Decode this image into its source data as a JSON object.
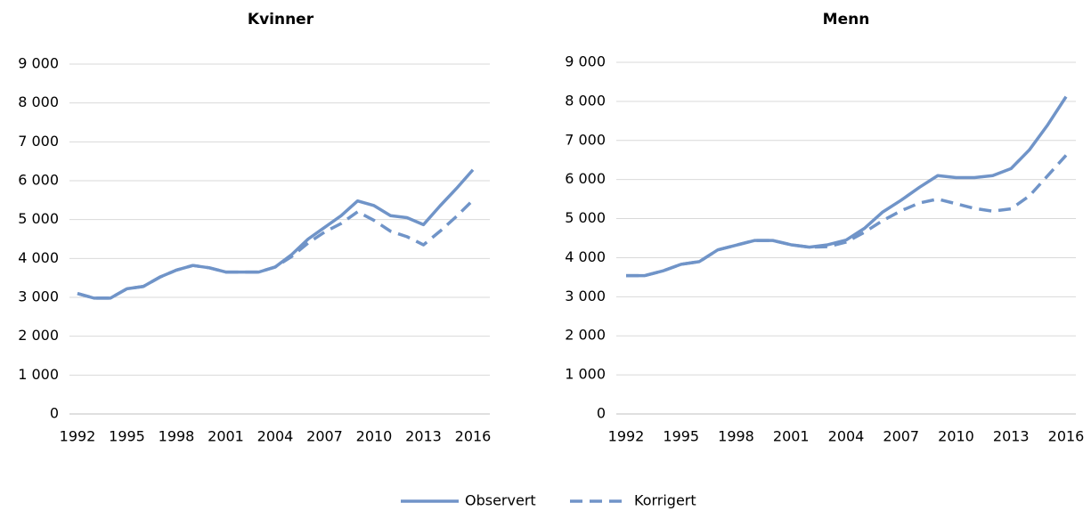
{
  "chart_data": [
    {
      "type": "line",
      "title": "Kvinner",
      "x": [
        1992,
        1993,
        1994,
        1995,
        1996,
        1997,
        1998,
        1999,
        2000,
        2001,
        2002,
        2003,
        2004,
        2005,
        2006,
        2007,
        2008,
        2009,
        2010,
        2011,
        2012,
        2013,
        2014,
        2015,
        2016
      ],
      "series": [
        {
          "name": "Observert",
          "color": "#7094c8",
          "dashed": false,
          "values": [
            3100,
            2980,
            2980,
            3220,
            3280,
            3520,
            3700,
            3820,
            3760,
            3650,
            3650,
            3650,
            3780,
            4100,
            4500,
            4800,
            5100,
            5480,
            5360,
            5100,
            5050,
            4870,
            5350,
            5800,
            6280
          ]
        },
        {
          "name": "Korrigert",
          "color": "#7094c8",
          "dashed": true,
          "values": [
            3100,
            2980,
            2980,
            3220,
            3280,
            3520,
            3700,
            3820,
            3760,
            3650,
            3650,
            3650,
            3780,
            4050,
            4400,
            4680,
            4900,
            5200,
            4980,
            4700,
            4560,
            4350,
            4700,
            5080,
            5500
          ]
        }
      ],
      "xlim": [
        1992,
        2016
      ],
      "xticks": [
        1992,
        1995,
        1998,
        2001,
        2004,
        2007,
        2010,
        2013,
        2016
      ],
      "ylim": [
        0,
        9000
      ],
      "yticks": [
        0,
        {
          "value": 1000,
          "label": "1 000"
        },
        {
          "value": 2000,
          "label": "2 000"
        },
        {
          "value": 3000,
          "label": "3 000"
        },
        {
          "value": 4000,
          "label": "4 000"
        },
        {
          "value": 5000,
          "label": "5 000"
        },
        {
          "value": 6000,
          "label": "6 000"
        },
        {
          "value": 7000,
          "label": "7 000"
        },
        {
          "value": 8000,
          "label": "8 000"
        },
        {
          "value": 9000,
          "label": "9 000"
        }
      ],
      "grid": true,
      "legend": "bottom"
    },
    {
      "type": "line",
      "title": "Menn",
      "x": [
        1992,
        1993,
        1994,
        1995,
        1996,
        1997,
        1998,
        1999,
        2000,
        2001,
        2002,
        2003,
        2004,
        2005,
        2006,
        2007,
        2008,
        2009,
        2010,
        2011,
        2012,
        2013,
        2014,
        2015,
        2016
      ],
      "series": [
        {
          "color": "#7094c8",
          "dashed": false,
          "values": [
            3540,
            3540,
            3660,
            3830,
            3900,
            4200,
            4320,
            4440,
            4440,
            4330,
            4270,
            4330,
            4450,
            4750,
            5170,
            5470,
            5800,
            6100,
            6050,
            6050,
            6100,
            6280,
            6760,
            7400,
            8120
          ]
        },
        {
          "color": "#7094c8",
          "dashed": true,
          "values": [
            3540,
            3540,
            3660,
            3830,
            3900,
            4200,
            4320,
            4440,
            4440,
            4330,
            4270,
            4280,
            4400,
            4650,
            4950,
            5200,
            5400,
            5500,
            5380,
            5260,
            5190,
            5250,
            5580,
            6100,
            6620
          ]
        }
      ],
      "xlim": [
        1992,
        2016
      ],
      "xticks": [
        1992,
        1995,
        1998,
        2001,
        2004,
        2007,
        2010,
        2013,
        2016
      ],
      "ylim": [
        0,
        9000
      ],
      "yticks": [
        0,
        {
          "value": 1000,
          "label": "1 000"
        },
        {
          "value": 2000,
          "label": "2 000"
        },
        {
          "value": 3000,
          "label": "3 000"
        },
        {
          "value": 4000,
          "label": "4 000"
        },
        {
          "value": 5000,
          "label": "5 000"
        },
        {
          "value": 6000,
          "label": "6 000"
        },
        {
          "value": 7000,
          "label": "7 000"
        },
        {
          "value": 8000,
          "label": "8 000"
        },
        {
          "value": 9000,
          "label": "9 000"
        }
      ],
      "grid": true
    }
  ]
}
